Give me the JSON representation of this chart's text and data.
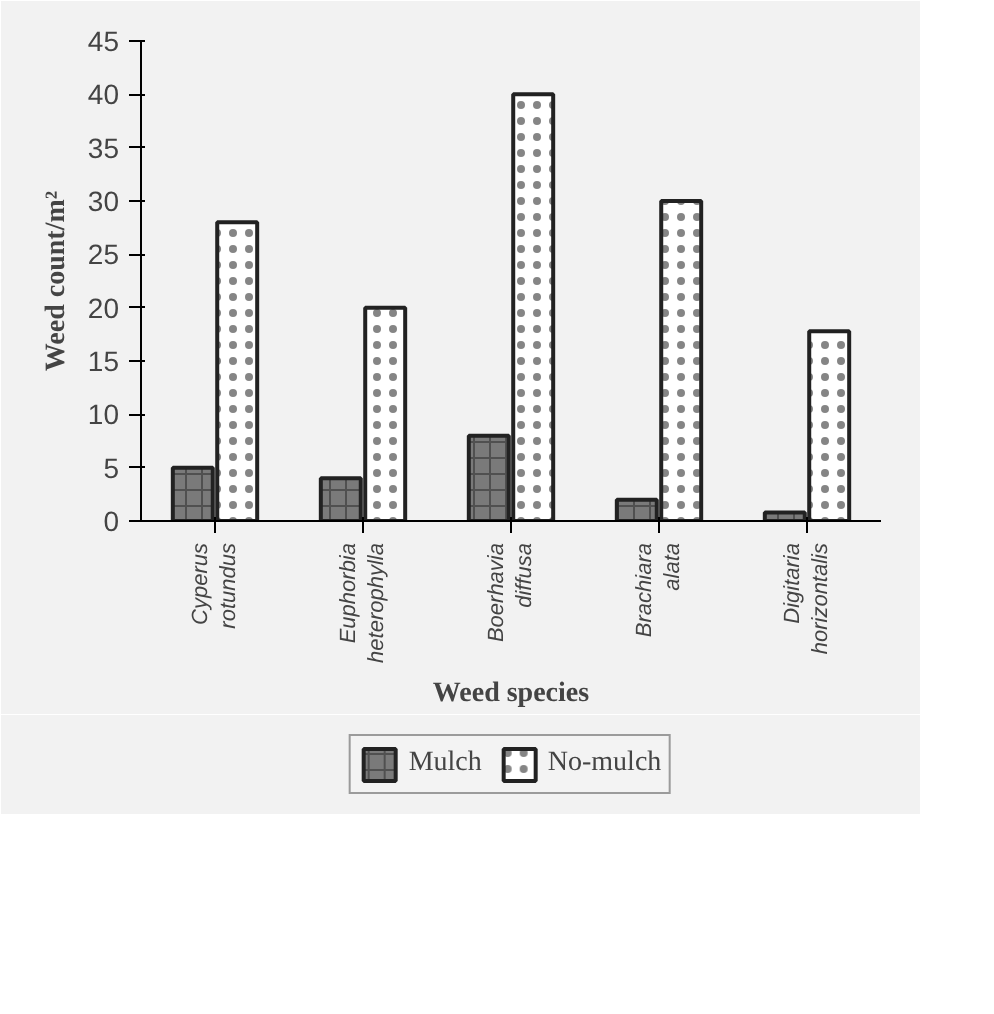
{
  "chart_data": {
    "type": "bar",
    "xlabel": "Weed species",
    "ylabel": "Weed count/m²",
    "categories": [
      "Cyperus rotundus",
      "Euphorbia heterophylla",
      "Boerhavia diffusa",
      "Brachiara alata",
      "Digitaria horizontalis"
    ],
    "series": [
      {
        "name": "Mulch",
        "color": "#7a7a7a",
        "values": [
          5,
          4,
          8,
          2,
          0.8
        ]
      },
      {
        "name": "No-mulch",
        "color": "#ffffff",
        "values": [
          28,
          20,
          40,
          30,
          17.8
        ]
      }
    ],
    "ylim": [
      0,
      45
    ],
    "yticks": [
      0,
      5,
      10,
      15,
      20,
      25,
      30,
      35,
      40,
      45
    ],
    "grid": false,
    "legend": "bottom"
  }
}
